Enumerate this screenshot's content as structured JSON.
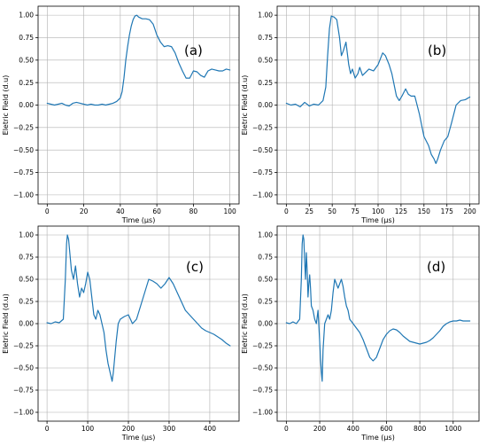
{
  "chart_data": [
    {
      "type": "line",
      "panel_label": "(a)",
      "xlabel": "Time (μs)",
      "ylabel": "Eletric Field (d.u)",
      "xlim": [
        -5,
        105
      ],
      "ylim": [
        -1.1,
        1.1
      ],
      "xticks": [
        0,
        20,
        40,
        60,
        80,
        100
      ],
      "yticks": [
        -1.0,
        -0.75,
        -0.5,
        -0.25,
        0.0,
        0.25,
        0.5,
        0.75,
        1.0
      ],
      "ytick_labels": [
        "−1.00",
        "−0.75",
        "−0.50",
        "−0.25",
        "0.00",
        "0.25",
        "0.50",
        "0.75",
        "1.00"
      ],
      "grid": true,
      "color": "#1f77b4",
      "series": [
        {
          "x": [
            0,
            2,
            4,
            6,
            8,
            10,
            12,
            14,
            16,
            18,
            20,
            22,
            24,
            26,
            28,
            30,
            32,
            34,
            36,
            38,
            40,
            41,
            42,
            43,
            44,
            45,
            46,
            47,
            48,
            49,
            50,
            52,
            54,
            56,
            58,
            60,
            62,
            64,
            66,
            68,
            70,
            72,
            74,
            76,
            78,
            80,
            82,
            84,
            86,
            88,
            90,
            92,
            94,
            96,
            98,
            100
          ],
          "y": [
            0.02,
            0.01,
            0.0,
            0.01,
            0.02,
            0.0,
            -0.01,
            0.02,
            0.03,
            0.02,
            0.01,
            0.0,
            0.01,
            0.0,
            0.0,
            0.01,
            0.0,
            0.01,
            0.02,
            0.04,
            0.08,
            0.15,
            0.3,
            0.5,
            0.65,
            0.78,
            0.88,
            0.95,
            0.99,
            1.0,
            0.98,
            0.96,
            0.96,
            0.95,
            0.9,
            0.78,
            0.7,
            0.65,
            0.66,
            0.65,
            0.58,
            0.47,
            0.38,
            0.3,
            0.3,
            0.38,
            0.37,
            0.33,
            0.31,
            0.38,
            0.4,
            0.39,
            0.38,
            0.38,
            0.4,
            0.39
          ]
        }
      ]
    },
    {
      "type": "line",
      "panel_label": "(b)",
      "xlabel": "Time (μs)",
      "ylabel": "Eletric Field (d.u)",
      "xlim": [
        -10,
        210
      ],
      "ylim": [
        -1.1,
        1.1
      ],
      "xticks": [
        0,
        25,
        50,
        75,
        100,
        125,
        150,
        175,
        200
      ],
      "yticks": [
        -1.0,
        -0.75,
        -0.5,
        -0.25,
        0.0,
        0.25,
        0.5,
        0.75,
        1.0
      ],
      "ytick_labels": [
        "−1.00",
        "−0.75",
        "−0.50",
        "−0.25",
        "0.00",
        "0.25",
        "0.50",
        "0.75",
        "1.00"
      ],
      "grid": true,
      "color": "#1f77b4",
      "series": [
        {
          "x": [
            0,
            5,
            10,
            15,
            20,
            25,
            30,
            35,
            40,
            43,
            45,
            47,
            49,
            52,
            55,
            58,
            60,
            62,
            65,
            68,
            70,
            72,
            75,
            78,
            80,
            83,
            86,
            90,
            95,
            100,
            105,
            108,
            112,
            115,
            118,
            120,
            123,
            126,
            130,
            133,
            136,
            140,
            145,
            150,
            155,
            158,
            161,
            163,
            165,
            168,
            172,
            176,
            180,
            185,
            190,
            195,
            200
          ],
          "y": [
            0.02,
            0.0,
            0.01,
            -0.02,
            0.03,
            -0.01,
            0.01,
            0.0,
            0.05,
            0.2,
            0.55,
            0.85,
            0.99,
            0.98,
            0.95,
            0.75,
            0.55,
            0.6,
            0.7,
            0.45,
            0.35,
            0.4,
            0.3,
            0.35,
            0.42,
            0.33,
            0.36,
            0.4,
            0.38,
            0.45,
            0.58,
            0.55,
            0.45,
            0.35,
            0.2,
            0.1,
            0.05,
            0.1,
            0.18,
            0.12,
            0.1,
            0.1,
            -0.1,
            -0.35,
            -0.45,
            -0.55,
            -0.6,
            -0.65,
            -0.6,
            -0.5,
            -0.4,
            -0.35,
            -0.2,
            0.0,
            0.05,
            0.06,
            0.09
          ]
        }
      ]
    },
    {
      "type": "line",
      "panel_label": "(c)",
      "xlabel": "Time (μs)",
      "ylabel": "Eletric Field (d.u)",
      "xlim": [
        -22,
        472
      ],
      "ylim": [
        -1.1,
        1.1
      ],
      "xticks": [
        0,
        100,
        200,
        300,
        400
      ],
      "yticks": [
        -1.0,
        -0.75,
        -0.5,
        -0.25,
        0.0,
        0.25,
        0.5,
        0.75,
        1.0
      ],
      "ytick_labels": [
        "−1.00",
        "−0.75",
        "−0.50",
        "−0.25",
        "0.00",
        "0.25",
        "0.50",
        "0.75",
        "1.00"
      ],
      "grid": true,
      "color": "#1f77b4",
      "series": [
        {
          "x": [
            0,
            10,
            20,
            30,
            40,
            45,
            48,
            50,
            53,
            57,
            60,
            65,
            70,
            75,
            80,
            85,
            90,
            95,
            100,
            105,
            110,
            115,
            120,
            125,
            130,
            135,
            140,
            145,
            150,
            155,
            160,
            163,
            166,
            170,
            175,
            180,
            190,
            200,
            210,
            220,
            230,
            240,
            250,
            260,
            270,
            280,
            290,
            300,
            310,
            320,
            330,
            340,
            350,
            360,
            370,
            380,
            390,
            400,
            410,
            420,
            430,
            440,
            450
          ],
          "y": [
            0.01,
            0.0,
            0.02,
            0.01,
            0.05,
            0.5,
            0.9,
            1.0,
            0.95,
            0.75,
            0.6,
            0.5,
            0.65,
            0.45,
            0.3,
            0.4,
            0.35,
            0.45,
            0.58,
            0.5,
            0.3,
            0.1,
            0.05,
            0.15,
            0.1,
            0.0,
            -0.1,
            -0.3,
            -0.45,
            -0.55,
            -0.65,
            -0.55,
            -0.4,
            -0.2,
            0.0,
            0.05,
            0.08,
            0.1,
            0.0,
            0.05,
            0.2,
            0.35,
            0.5,
            0.48,
            0.45,
            0.4,
            0.45,
            0.52,
            0.45,
            0.35,
            0.25,
            0.15,
            0.1,
            0.05,
            0.0,
            -0.05,
            -0.08,
            -0.1,
            -0.12,
            -0.15,
            -0.18,
            -0.22,
            -0.25
          ]
        }
      ]
    },
    {
      "type": "line",
      "panel_label": "(d)",
      "xlabel": "Time (μs)",
      "ylabel": "Eletric Field (d.u)",
      "xlim": [
        -55,
        1155
      ],
      "ylim": [
        -1.1,
        1.1
      ],
      "xticks": [
        0,
        200,
        400,
        600,
        800,
        1000
      ],
      "yticks": [
        -1.0,
        -0.75,
        -0.5,
        -0.25,
        0.0,
        0.25,
        0.5,
        0.75,
        1.0
      ],
      "ytick_labels": [
        "−1.00",
        "−0.75",
        "−0.50",
        "−0.25",
        "0.00",
        "0.25",
        "0.50",
        "0.75",
        "1.00"
      ],
      "grid": true,
      "color": "#1f77b4",
      "series": [
        {
          "x": [
            0,
            20,
            40,
            60,
            80,
            90,
            95,
            100,
            105,
            110,
            115,
            120,
            125,
            130,
            135,
            140,
            145,
            150,
            160,
            170,
            180,
            190,
            200,
            205,
            210,
            215,
            220,
            230,
            240,
            250,
            260,
            270,
            280,
            290,
            300,
            310,
            320,
            330,
            340,
            350,
            360,
            370,
            380,
            400,
            420,
            440,
            460,
            480,
            500,
            520,
            540,
            560,
            580,
            600,
            620,
            640,
            660,
            680,
            700,
            720,
            740,
            760,
            780,
            800,
            820,
            840,
            860,
            880,
            900,
            920,
            940,
            960,
            980,
            1000,
            1020,
            1040,
            1060,
            1080,
            1100
          ],
          "y": [
            0.01,
            0.0,
            0.02,
            0.0,
            0.05,
            0.5,
            0.9,
            1.0,
            0.95,
            0.7,
            0.5,
            0.8,
            0.6,
            0.3,
            0.45,
            0.55,
            0.4,
            0.2,
            0.15,
            0.05,
            0.0,
            0.15,
            -0.2,
            -0.4,
            -0.55,
            -0.65,
            -0.3,
            0.0,
            0.05,
            0.1,
            0.05,
            0.15,
            0.35,
            0.5,
            0.45,
            0.4,
            0.45,
            0.5,
            0.42,
            0.3,
            0.2,
            0.15,
            0.05,
            0.0,
            -0.05,
            -0.1,
            -0.18,
            -0.28,
            -0.38,
            -0.42,
            -0.38,
            -0.28,
            -0.18,
            -0.12,
            -0.08,
            -0.06,
            -0.07,
            -0.1,
            -0.14,
            -0.17,
            -0.2,
            -0.21,
            -0.22,
            -0.23,
            -0.22,
            -0.21,
            -0.19,
            -0.16,
            -0.12,
            -0.08,
            -0.03,
            0.0,
            0.02,
            0.03,
            0.03,
            0.04,
            0.03,
            0.03,
            0.03
          ]
        }
      ]
    }
  ]
}
